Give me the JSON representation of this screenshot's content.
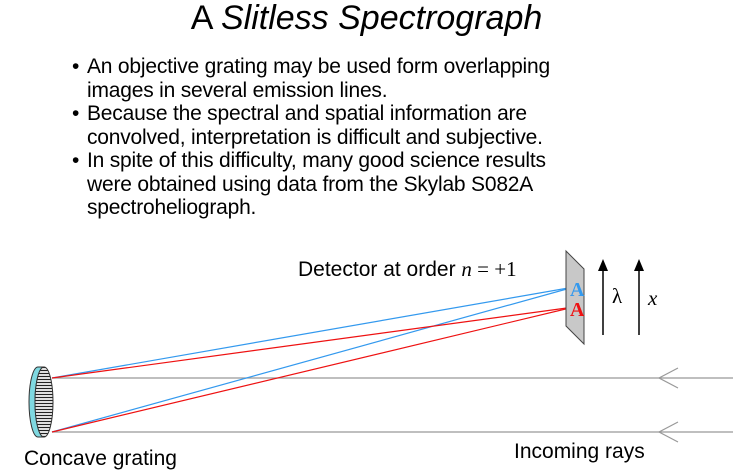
{
  "title": {
    "prefix": "A",
    "emphasis": "Slitless Spectrograph"
  },
  "bullets": [
    {
      "lines": [
        "An objective grating may be used form overlapping",
        "images in several emission lines."
      ]
    },
    {
      "lines": [
        "Because the spectral and spatial  information are",
        "convolved, interpretation is difficult and subjective."
      ]
    },
    {
      "lines": [
        "In spite of this difficulty, many good science results",
        "were obtained using data from the Skylab S082A",
        "spectroheliograph."
      ]
    }
  ],
  "diagram": {
    "detector_label": "Detector at order",
    "order_var": "n",
    "order_eq": " = +1",
    "lambda_label": "λ",
    "x_label": "x",
    "spot_blue": "A",
    "spot_red": "A",
    "grating_label": "Concave grating",
    "rays_label": "Incoming rays",
    "colors": {
      "blue_ray": "#3399ee",
      "red_ray": "#ee1111",
      "incoming_ray": "#999999",
      "grating_fill": "#7fd8e0",
      "detector_fill": "#c8c8c8"
    }
  }
}
